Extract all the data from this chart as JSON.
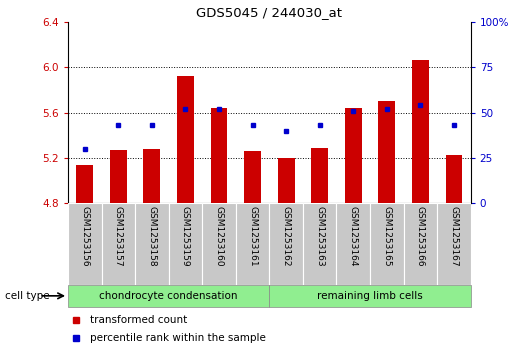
{
  "title": "GDS5045 / 244030_at",
  "samples": [
    "GSM1253156",
    "GSM1253157",
    "GSM1253158",
    "GSM1253159",
    "GSM1253160",
    "GSM1253161",
    "GSM1253162",
    "GSM1253163",
    "GSM1253164",
    "GSM1253165",
    "GSM1253166",
    "GSM1253167"
  ],
  "transformed_count": [
    5.14,
    5.27,
    5.28,
    5.92,
    5.64,
    5.26,
    5.2,
    5.29,
    5.64,
    5.7,
    6.06,
    5.23
  ],
  "percentile_rank": [
    30,
    43,
    43,
    52,
    52,
    43,
    40,
    43,
    51,
    52,
    54,
    43
  ],
  "cell_type_labels": [
    "chondrocyte condensation",
    "remaining limb cells"
  ],
  "bar_color": "#CC0000",
  "dot_color": "#0000CC",
  "ylim_left": [
    4.8,
    6.4
  ],
  "ylim_right": [
    0,
    100
  ],
  "yticks_left": [
    4.8,
    5.2,
    5.6,
    6.0,
    6.4
  ],
  "yticks_right": [
    0,
    25,
    50,
    75,
    100
  ],
  "ytick_labels_right": [
    "0",
    "25",
    "50",
    "75",
    "100%"
  ],
  "grid_lines": [
    5.2,
    5.6,
    6.0
  ],
  "bg_color": "#FFFFFF",
  "bar_width": 0.5,
  "cell_type_row_color": "#90EE90",
  "sample_bg_color": "#C8C8C8"
}
